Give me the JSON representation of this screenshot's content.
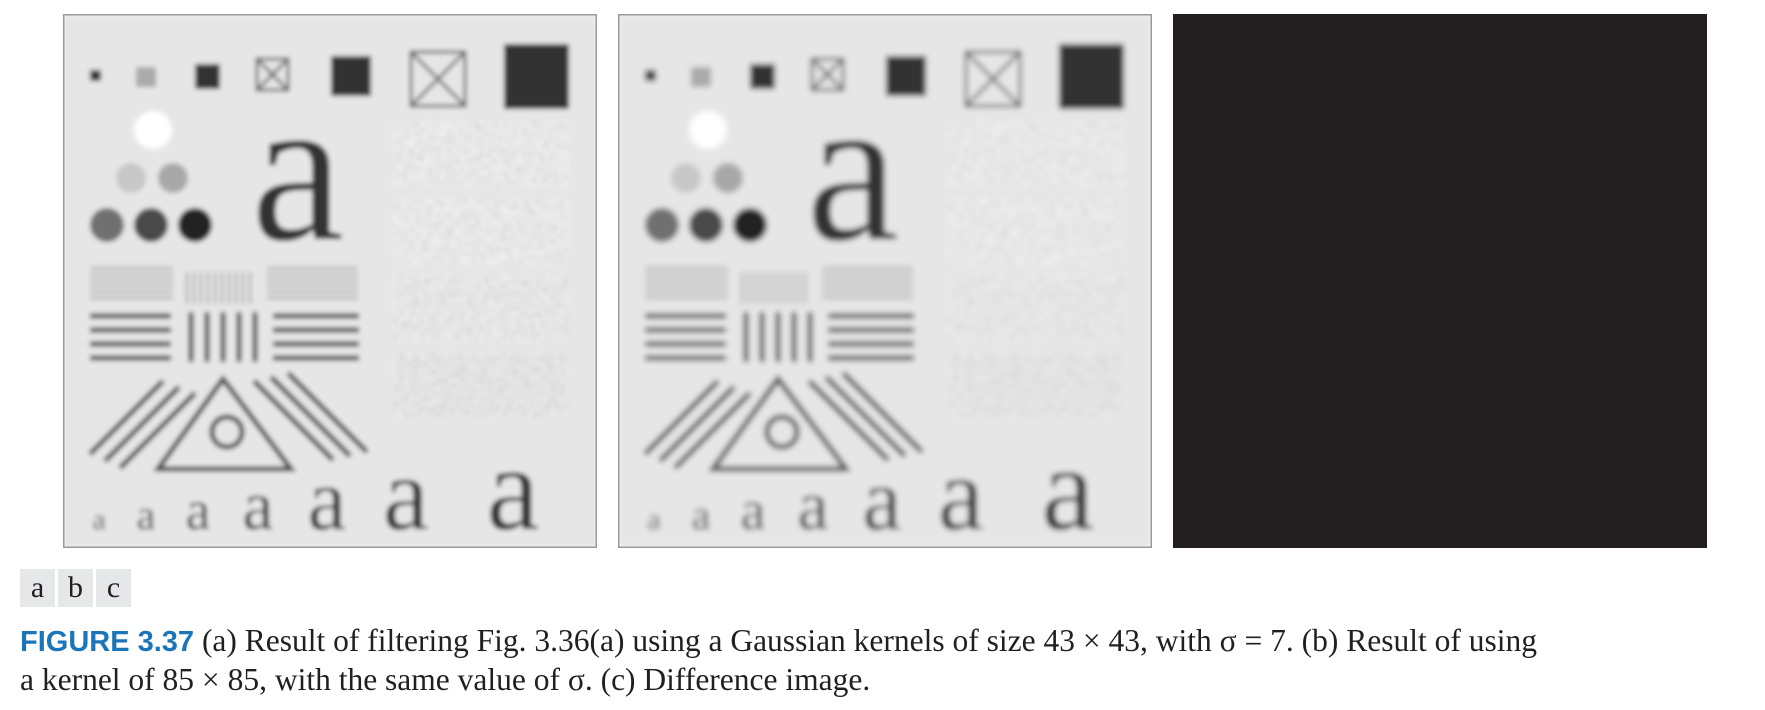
{
  "panel_labels": [
    "a",
    "b",
    "c"
  ],
  "caption": {
    "figure_label": "FIGURE 3.37",
    "line1": "(a) Result of filtering Fig. 3.36(a) using a Gaussian kernels of size 43 × 43, with σ = 7. (b) Result of using",
    "line2": "a kernel of 85 × 85, with the same value of σ. (c) Difference image."
  },
  "test_pattern_glyph": "a",
  "colors": {
    "panel_background": "#e6e6e6",
    "ink": "#231f20",
    "difference_image": "#231f20",
    "figure_label": "#1a76b8",
    "label_box": "#e6e7e8"
  }
}
